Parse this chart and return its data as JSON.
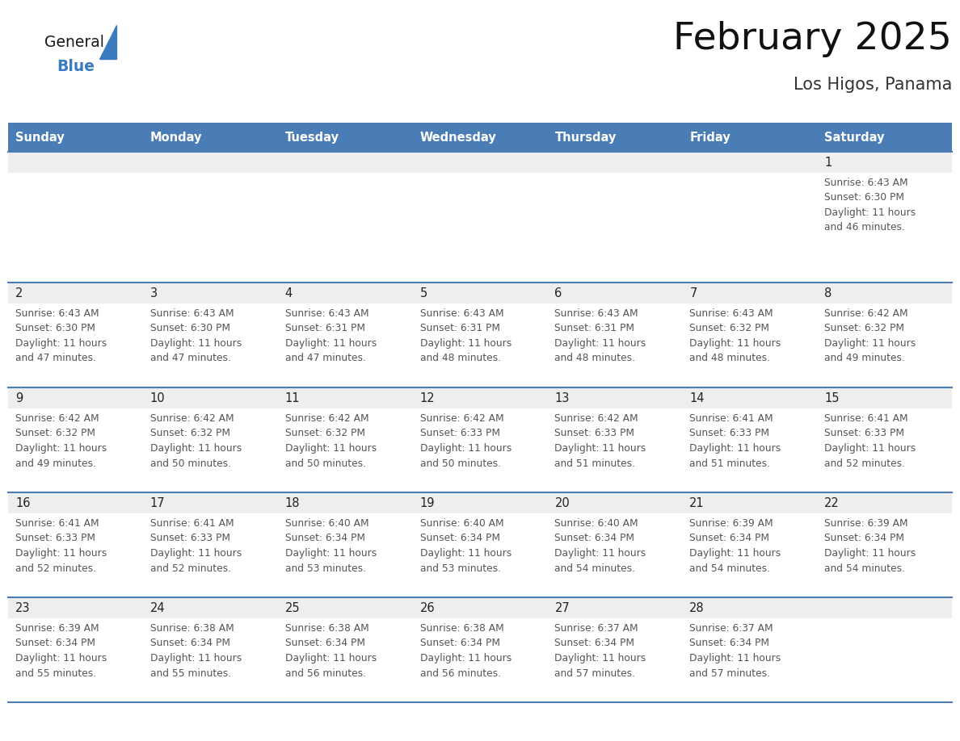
{
  "title": "February 2025",
  "subtitle": "Los Higos, Panama",
  "days_of_week": [
    "Sunday",
    "Monday",
    "Tuesday",
    "Wednesday",
    "Thursday",
    "Friday",
    "Saturday"
  ],
  "header_bg": "#4a7db5",
  "header_text": "#FFFFFF",
  "row_bg_stripe": "#EEEEEE",
  "row_bg_white": "#FFFFFF",
  "divider_color": "#4a7db5",
  "cell_text_color": "#555555",
  "day_num_color": "#222222",
  "logo_general_color": "#1a1a1a",
  "logo_blue_color": "#3a7abf",
  "calendar_data": [
    [
      {
        "day": null,
        "sunrise": null,
        "sunset": null,
        "daylight": null
      },
      {
        "day": null,
        "sunrise": null,
        "sunset": null,
        "daylight": null
      },
      {
        "day": null,
        "sunrise": null,
        "sunset": null,
        "daylight": null
      },
      {
        "day": null,
        "sunrise": null,
        "sunset": null,
        "daylight": null
      },
      {
        "day": null,
        "sunrise": null,
        "sunset": null,
        "daylight": null
      },
      {
        "day": null,
        "sunrise": null,
        "sunset": null,
        "daylight": null
      },
      {
        "day": 1,
        "sunrise": "6:43 AM",
        "sunset": "6:30 PM",
        "daylight_hours": "11 hours",
        "daylight_mins": "and 46 minutes."
      }
    ],
    [
      {
        "day": 2,
        "sunrise": "6:43 AM",
        "sunset": "6:30 PM",
        "daylight_hours": "11 hours",
        "daylight_mins": "and 47 minutes."
      },
      {
        "day": 3,
        "sunrise": "6:43 AM",
        "sunset": "6:30 PM",
        "daylight_hours": "11 hours",
        "daylight_mins": "and 47 minutes."
      },
      {
        "day": 4,
        "sunrise": "6:43 AM",
        "sunset": "6:31 PM",
        "daylight_hours": "11 hours",
        "daylight_mins": "and 47 minutes."
      },
      {
        "day": 5,
        "sunrise": "6:43 AM",
        "sunset": "6:31 PM",
        "daylight_hours": "11 hours",
        "daylight_mins": "and 48 minutes."
      },
      {
        "day": 6,
        "sunrise": "6:43 AM",
        "sunset": "6:31 PM",
        "daylight_hours": "11 hours",
        "daylight_mins": "and 48 minutes."
      },
      {
        "day": 7,
        "sunrise": "6:43 AM",
        "sunset": "6:32 PM",
        "daylight_hours": "11 hours",
        "daylight_mins": "and 48 minutes."
      },
      {
        "day": 8,
        "sunrise": "6:42 AM",
        "sunset": "6:32 PM",
        "daylight_hours": "11 hours",
        "daylight_mins": "and 49 minutes."
      }
    ],
    [
      {
        "day": 9,
        "sunrise": "6:42 AM",
        "sunset": "6:32 PM",
        "daylight_hours": "11 hours",
        "daylight_mins": "and 49 minutes."
      },
      {
        "day": 10,
        "sunrise": "6:42 AM",
        "sunset": "6:32 PM",
        "daylight_hours": "11 hours",
        "daylight_mins": "and 50 minutes."
      },
      {
        "day": 11,
        "sunrise": "6:42 AM",
        "sunset": "6:32 PM",
        "daylight_hours": "11 hours",
        "daylight_mins": "and 50 minutes."
      },
      {
        "day": 12,
        "sunrise": "6:42 AM",
        "sunset": "6:33 PM",
        "daylight_hours": "11 hours",
        "daylight_mins": "and 50 minutes."
      },
      {
        "day": 13,
        "sunrise": "6:42 AM",
        "sunset": "6:33 PM",
        "daylight_hours": "11 hours",
        "daylight_mins": "and 51 minutes."
      },
      {
        "day": 14,
        "sunrise": "6:41 AM",
        "sunset": "6:33 PM",
        "daylight_hours": "11 hours",
        "daylight_mins": "and 51 minutes."
      },
      {
        "day": 15,
        "sunrise": "6:41 AM",
        "sunset": "6:33 PM",
        "daylight_hours": "11 hours",
        "daylight_mins": "and 52 minutes."
      }
    ],
    [
      {
        "day": 16,
        "sunrise": "6:41 AM",
        "sunset": "6:33 PM",
        "daylight_hours": "11 hours",
        "daylight_mins": "and 52 minutes."
      },
      {
        "day": 17,
        "sunrise": "6:41 AM",
        "sunset": "6:33 PM",
        "daylight_hours": "11 hours",
        "daylight_mins": "and 52 minutes."
      },
      {
        "day": 18,
        "sunrise": "6:40 AM",
        "sunset": "6:34 PM",
        "daylight_hours": "11 hours",
        "daylight_mins": "and 53 minutes."
      },
      {
        "day": 19,
        "sunrise": "6:40 AM",
        "sunset": "6:34 PM",
        "daylight_hours": "11 hours",
        "daylight_mins": "and 53 minutes."
      },
      {
        "day": 20,
        "sunrise": "6:40 AM",
        "sunset": "6:34 PM",
        "daylight_hours": "11 hours",
        "daylight_mins": "and 54 minutes."
      },
      {
        "day": 21,
        "sunrise": "6:39 AM",
        "sunset": "6:34 PM",
        "daylight_hours": "11 hours",
        "daylight_mins": "and 54 minutes."
      },
      {
        "day": 22,
        "sunrise": "6:39 AM",
        "sunset": "6:34 PM",
        "daylight_hours": "11 hours",
        "daylight_mins": "and 54 minutes."
      }
    ],
    [
      {
        "day": 23,
        "sunrise": "6:39 AM",
        "sunset": "6:34 PM",
        "daylight_hours": "11 hours",
        "daylight_mins": "and 55 minutes."
      },
      {
        "day": 24,
        "sunrise": "6:38 AM",
        "sunset": "6:34 PM",
        "daylight_hours": "11 hours",
        "daylight_mins": "and 55 minutes."
      },
      {
        "day": 25,
        "sunrise": "6:38 AM",
        "sunset": "6:34 PM",
        "daylight_hours": "11 hours",
        "daylight_mins": "and 56 minutes."
      },
      {
        "day": 26,
        "sunrise": "6:38 AM",
        "sunset": "6:34 PM",
        "daylight_hours": "11 hours",
        "daylight_mins": "and 56 minutes."
      },
      {
        "day": 27,
        "sunrise": "6:37 AM",
        "sunset": "6:34 PM",
        "daylight_hours": "11 hours",
        "daylight_mins": "and 57 minutes."
      },
      {
        "day": 28,
        "sunrise": "6:37 AM",
        "sunset": "6:34 PM",
        "daylight_hours": "11 hours",
        "daylight_mins": "and 57 minutes."
      },
      {
        "day": null,
        "sunrise": null,
        "sunset": null,
        "daylight_hours": null,
        "daylight_mins": null
      }
    ]
  ]
}
